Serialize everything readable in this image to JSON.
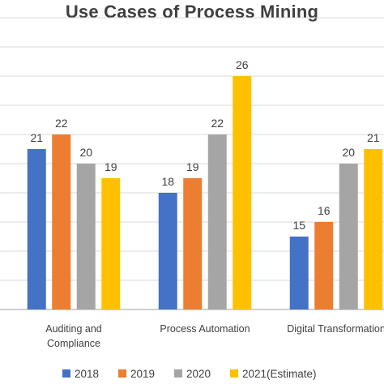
{
  "chart_data": {
    "type": "bar",
    "title": "Use Cases of Process Mining",
    "categories": [
      [
        "Auditing and",
        "Compliance"
      ],
      [
        "Process Automation"
      ],
      [
        "Digital Transformation"
      ]
    ],
    "series": [
      {
        "name": "2018",
        "color": "#4472C4",
        "values": [
          21,
          18,
          15
        ]
      },
      {
        "name": "2019",
        "color": "#ED7D31",
        "values": [
          22,
          19,
          16
        ]
      },
      {
        "name": "2020",
        "color": "#A5A5A5",
        "values": [
          20,
          22,
          20
        ]
      },
      {
        "name": "2021(Estimate)",
        "color": "#FFC000",
        "values": [
          19,
          26,
          21
        ]
      }
    ],
    "ylim": [
      10,
      30
    ],
    "grid": true,
    "legend_position": "bottom"
  }
}
